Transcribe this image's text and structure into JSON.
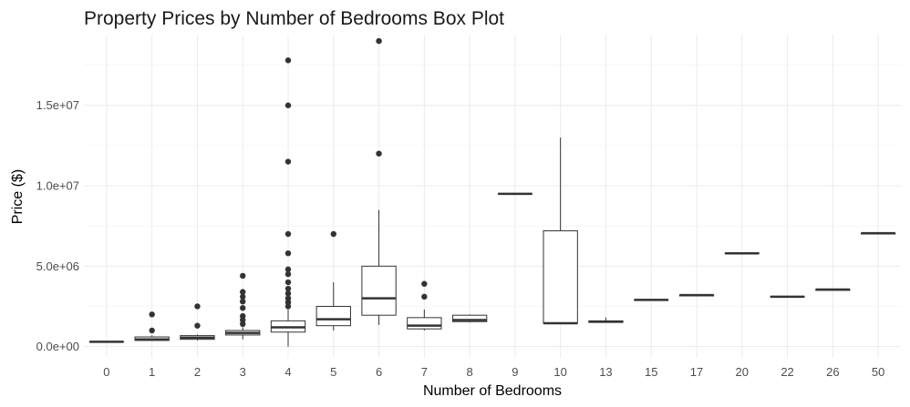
{
  "chart_data": {
    "type": "box",
    "title": "Property Prices by Number of Bedrooms Box Plot",
    "xlabel": "Number of Bedrooms",
    "ylabel": "Price ($)",
    "ylim": [
      -700000,
      19400000
    ],
    "y_ticks": [
      {
        "value": 0,
        "label": "0.0e+00"
      },
      {
        "value": 5000000,
        "label": "5.0e+06"
      },
      {
        "value": 10000000,
        "label": "1.0e+07"
      },
      {
        "value": 15000000,
        "label": "1.5e+07"
      }
    ],
    "grid": true,
    "legend": "none",
    "colors": {
      "box_stroke": "#333333",
      "median": "#333333",
      "outlier": "#333333",
      "box_fill": "#ffffff"
    },
    "categories": [
      "0",
      "1",
      "2",
      "3",
      "4",
      "5",
      "6",
      "7",
      "8",
      "9",
      "10",
      "13",
      "15",
      "17",
      "20",
      "22",
      "26",
      "50"
    ],
    "boxes": [
      {
        "category": "0",
        "min": 300000,
        "q1": 300000,
        "median": 300000,
        "q3": 300000,
        "max": 300000,
        "outliers": []
      },
      {
        "category": "1",
        "min": 350000,
        "q1": 380000,
        "median": 450000,
        "q3": 600000,
        "max": 700000,
        "outliers": [
          1000000,
          2000000
        ]
      },
      {
        "category": "2",
        "min": 380000,
        "q1": 450000,
        "median": 550000,
        "q3": 680000,
        "max": 750000,
        "outliers": [
          1300000,
          2500000
        ]
      },
      {
        "category": "3",
        "min": 450000,
        "q1": 720000,
        "median": 850000,
        "q3": 1000000,
        "max": 1200000,
        "outliers": [
          1400000,
          1650000,
          1900000,
          2400000,
          2800000,
          3100000,
          3400000,
          4400000
        ]
      },
      {
        "category": "4",
        "min": 0,
        "q1": 900000,
        "median": 1200000,
        "q3": 1600000,
        "max": 2300000,
        "outliers": [
          2500000,
          2750000,
          3000000,
          3300000,
          3600000,
          4000000,
          4500000,
          4800000,
          5800000,
          7000000,
          11500000,
          15000000,
          17800000
        ]
      },
      {
        "category": "5",
        "min": 1000000,
        "q1": 1300000,
        "median": 1700000,
        "q3": 2500000,
        "max": 4000000,
        "outliers": [
          7000000
        ]
      },
      {
        "category": "6",
        "min": 1350000,
        "q1": 1950000,
        "median": 3000000,
        "q3": 5000000,
        "max": 8500000,
        "outliers": [
          12000000,
          19000000
        ]
      },
      {
        "category": "7",
        "min": 1000000,
        "q1": 1100000,
        "median": 1300000,
        "q3": 1800000,
        "max": 2300000,
        "outliers": [
          3100000,
          3900000
        ]
      },
      {
        "category": "8",
        "min": 1500000,
        "q1": 1550000,
        "median": 1650000,
        "q3": 1950000,
        "max": 2000000,
        "outliers": []
      },
      {
        "category": "9",
        "min": 9500000,
        "q1": 9500000,
        "median": 9500000,
        "q3": 9500000,
        "max": 9500000,
        "outliers": []
      },
      {
        "category": "10",
        "min": 1450000,
        "q1": 1450000,
        "median": 1450000,
        "q3": 7200000,
        "max": 13000000,
        "outliers": []
      },
      {
        "category": "13",
        "min": 1500000,
        "q1": 1500000,
        "median": 1550000,
        "q3": 1600000,
        "max": 1800000,
        "outliers": []
      },
      {
        "category": "15",
        "min": 2900000,
        "q1": 2900000,
        "median": 2900000,
        "q3": 2900000,
        "max": 2900000,
        "outliers": []
      },
      {
        "category": "17",
        "min": 3150000,
        "q1": 3150000,
        "median": 3200000,
        "q3": 3200000,
        "max": 3200000,
        "outliers": []
      },
      {
        "category": "20",
        "min": 5800000,
        "q1": 5800000,
        "median": 5800000,
        "q3": 5800000,
        "max": 5800000,
        "outliers": []
      },
      {
        "category": "22",
        "min": 3100000,
        "q1": 3100000,
        "median": 3100000,
        "q3": 3100000,
        "max": 3100000,
        "outliers": []
      },
      {
        "category": "26",
        "min": 3500000,
        "q1": 3500000,
        "median": 3550000,
        "q3": 3550000,
        "max": 3550000,
        "outliers": []
      },
      {
        "category": "50",
        "min": 7000000,
        "q1": 7000000,
        "median": 7050000,
        "q3": 7050000,
        "max": 7050000,
        "outliers": []
      }
    ]
  }
}
